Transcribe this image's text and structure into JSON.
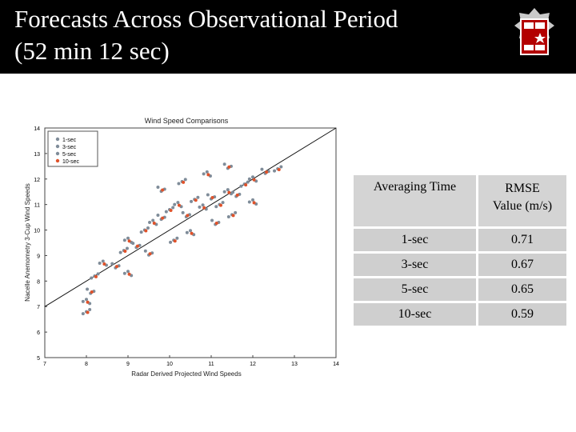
{
  "slide": {
    "title_line1": "Forecasts Across Observational Period",
    "title_line2": "(52 min 12 sec)"
  },
  "logo": {
    "icon": "university-seal-logo"
  },
  "table": {
    "headers": [
      "Averaging Time",
      "RMSE",
      "Value (m/s)"
    ],
    "rows": [
      {
        "time": "1-sec",
        "rmse": "0.71"
      },
      {
        "time": "3-sec",
        "rmse": "0.67"
      },
      {
        "time": "5-sec",
        "rmse": "0.65"
      },
      {
        "time": "10-sec",
        "rmse": "0.59"
      }
    ]
  },
  "chart_data": {
    "type": "scatter",
    "title": "Wind Speed Comparisons",
    "xlabel": "Radar Derived Projected Wind Speeds",
    "ylabel": "Nacelle Anemometry 3-Cup Wind Speeds",
    "xlim": [
      7,
      14
    ],
    "ylim": [
      5,
      14
    ],
    "xticks": [
      "7",
      "8",
      "9",
      "10",
      "11",
      "12",
      "13",
      "14"
    ],
    "yticks": [
      "5",
      "6",
      "7",
      "8",
      "9",
      "10",
      "11",
      "12",
      "13",
      "14"
    ],
    "grid": false,
    "legend_position": "top-left",
    "reference_line": {
      "x": [
        7,
        14
      ],
      "y": [
        7,
        14
      ]
    },
    "series": [
      {
        "name": "1-sec",
        "color": "#7f8c99"
      },
      {
        "name": "3-sec",
        "color": "#7f8c99"
      },
      {
        "name": "5-sec",
        "color": "#7f8c99"
      },
      {
        "name": "10-sec",
        "color": "#e0522a"
      }
    ],
    "cluster_points": [
      {
        "x": 8.0,
        "y": 6.8
      },
      {
        "x": 8.0,
        "y": 7.2
      },
      {
        "x": 8.1,
        "y": 7.6
      },
      {
        "x": 8.2,
        "y": 8.2
      },
      {
        "x": 8.4,
        "y": 8.7
      },
      {
        "x": 8.7,
        "y": 8.6
      },
      {
        "x": 8.9,
        "y": 9.2
      },
      {
        "x": 9.0,
        "y": 9.6
      },
      {
        "x": 9.2,
        "y": 9.4
      },
      {
        "x": 9.4,
        "y": 10.0
      },
      {
        "x": 9.6,
        "y": 10.3
      },
      {
        "x": 9.8,
        "y": 10.5
      },
      {
        "x": 10.0,
        "y": 10.8
      },
      {
        "x": 10.2,
        "y": 11.0
      },
      {
        "x": 10.4,
        "y": 10.6
      },
      {
        "x": 10.6,
        "y": 11.2
      },
      {
        "x": 10.8,
        "y": 10.9
      },
      {
        "x": 11.0,
        "y": 11.3
      },
      {
        "x": 11.2,
        "y": 11.0
      },
      {
        "x": 11.4,
        "y": 11.5
      },
      {
        "x": 11.6,
        "y": 11.4
      },
      {
        "x": 11.8,
        "y": 11.8
      },
      {
        "x": 12.0,
        "y": 12.0
      },
      {
        "x": 12.3,
        "y": 12.3
      },
      {
        "x": 12.6,
        "y": 12.4
      },
      {
        "x": 9.0,
        "y": 8.3
      },
      {
        "x": 9.5,
        "y": 9.1
      },
      {
        "x": 10.1,
        "y": 9.6
      },
      {
        "x": 10.5,
        "y": 9.9
      },
      {
        "x": 11.1,
        "y": 10.3
      },
      {
        "x": 11.5,
        "y": 10.6
      },
      {
        "x": 12.0,
        "y": 11.1
      },
      {
        "x": 9.8,
        "y": 11.6
      },
      {
        "x": 10.3,
        "y": 11.9
      },
      {
        "x": 10.9,
        "y": 12.2
      },
      {
        "x": 11.4,
        "y": 12.5
      }
    ]
  }
}
